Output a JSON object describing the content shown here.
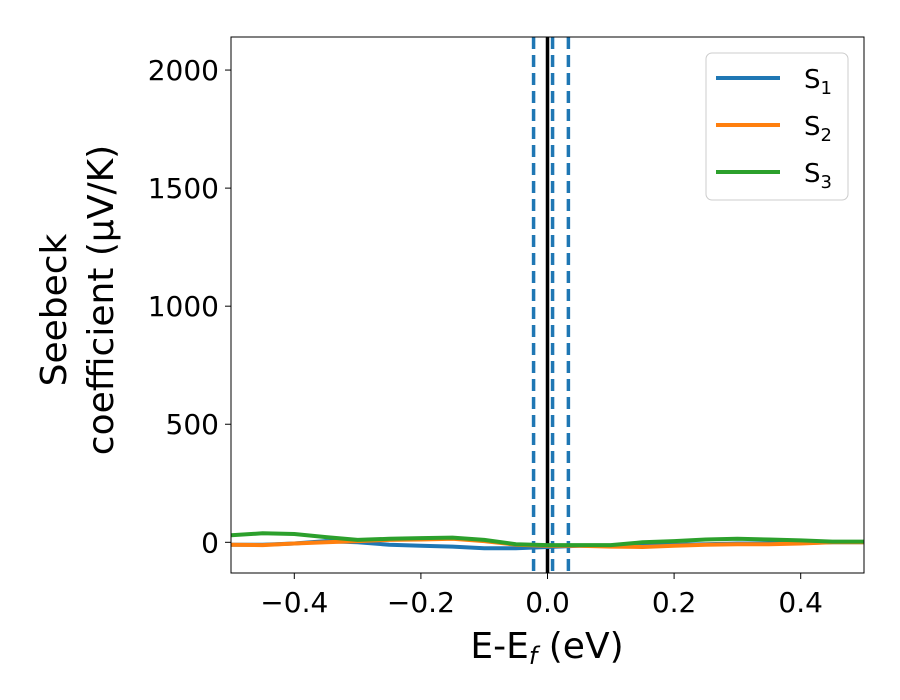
{
  "chart_data": {
    "type": "line",
    "xlabel": "E-E",
    "xlabel_sub": "f",
    "xlabel_unit": " (eV)",
    "ylabel_line1": "Seebeck",
    "ylabel_line2": "coefficient  (μV/K)",
    "xlim": [
      -0.5,
      0.5
    ],
    "ylim": [
      -130,
      2140
    ],
    "xticks": [
      -0.4,
      -0.2,
      0.0,
      0.2,
      0.4
    ],
    "xtick_labels": [
      "−0.4",
      "−0.2",
      "0.0",
      "0.2",
      "0.4"
    ],
    "yticks": [
      0,
      500,
      1000,
      1500,
      2000
    ],
    "ytick_labels": [
      "0",
      "500",
      "1000",
      "1500",
      "2000"
    ],
    "grid": false,
    "legend_position": "top-right",
    "vlines": [
      {
        "x": -0.022,
        "style": "dashed",
        "color": "#1f77b4"
      },
      {
        "x": 0.0,
        "style": "solid",
        "color": "#000000"
      },
      {
        "x": 0.008,
        "style": "dashed",
        "color": "#1f77b4"
      },
      {
        "x": 0.033,
        "style": "dashed",
        "color": "#1f77b4"
      }
    ],
    "series": [
      {
        "name": "S",
        "sub": "1",
        "color": "#1f77b4",
        "x": [
          -0.5,
          -0.45,
          -0.4,
          -0.35,
          -0.3,
          -0.25,
          -0.2,
          -0.15,
          -0.1,
          -0.05,
          0.0,
          0.05,
          0.1,
          0.15,
          0.2,
          0.25,
          0.3,
          0.35,
          0.4,
          0.45,
          0.5
        ],
        "values": [
          -10,
          -10,
          -5,
          5,
          0,
          -10,
          -15,
          -18,
          -25,
          -25,
          -20,
          -15,
          -15,
          -12,
          -10,
          -8,
          -5,
          -5,
          -3,
          0,
          0
        ]
      },
      {
        "name": "S",
        "sub": "2",
        "color": "#ff7f0e",
        "x": [
          -0.5,
          -0.45,
          -0.4,
          -0.35,
          -0.3,
          -0.25,
          -0.2,
          -0.15,
          -0.1,
          -0.05,
          0.0,
          0.05,
          0.1,
          0.15,
          0.2,
          0.25,
          0.3,
          0.35,
          0.4,
          0.45,
          0.5
        ],
        "values": [
          -10,
          -12,
          -5,
          0,
          5,
          10,
          12,
          15,
          5,
          -10,
          -15,
          -15,
          -18,
          -20,
          -15,
          -10,
          -8,
          -8,
          -5,
          0,
          0
        ]
      },
      {
        "name": "S",
        "sub": "3",
        "color": "#2ca02c",
        "x": [
          -0.5,
          -0.45,
          -0.4,
          -0.35,
          -0.3,
          -0.25,
          -0.2,
          -0.15,
          -0.1,
          -0.05,
          0.0,
          0.05,
          0.1,
          0.15,
          0.2,
          0.25,
          0.3,
          0.35,
          0.4,
          0.45,
          0.5
        ],
        "values": [
          30,
          38,
          35,
          22,
          10,
          15,
          18,
          20,
          10,
          -8,
          -12,
          -12,
          -12,
          0,
          5,
          12,
          15,
          12,
          8,
          3,
          3
        ]
      }
    ]
  }
}
